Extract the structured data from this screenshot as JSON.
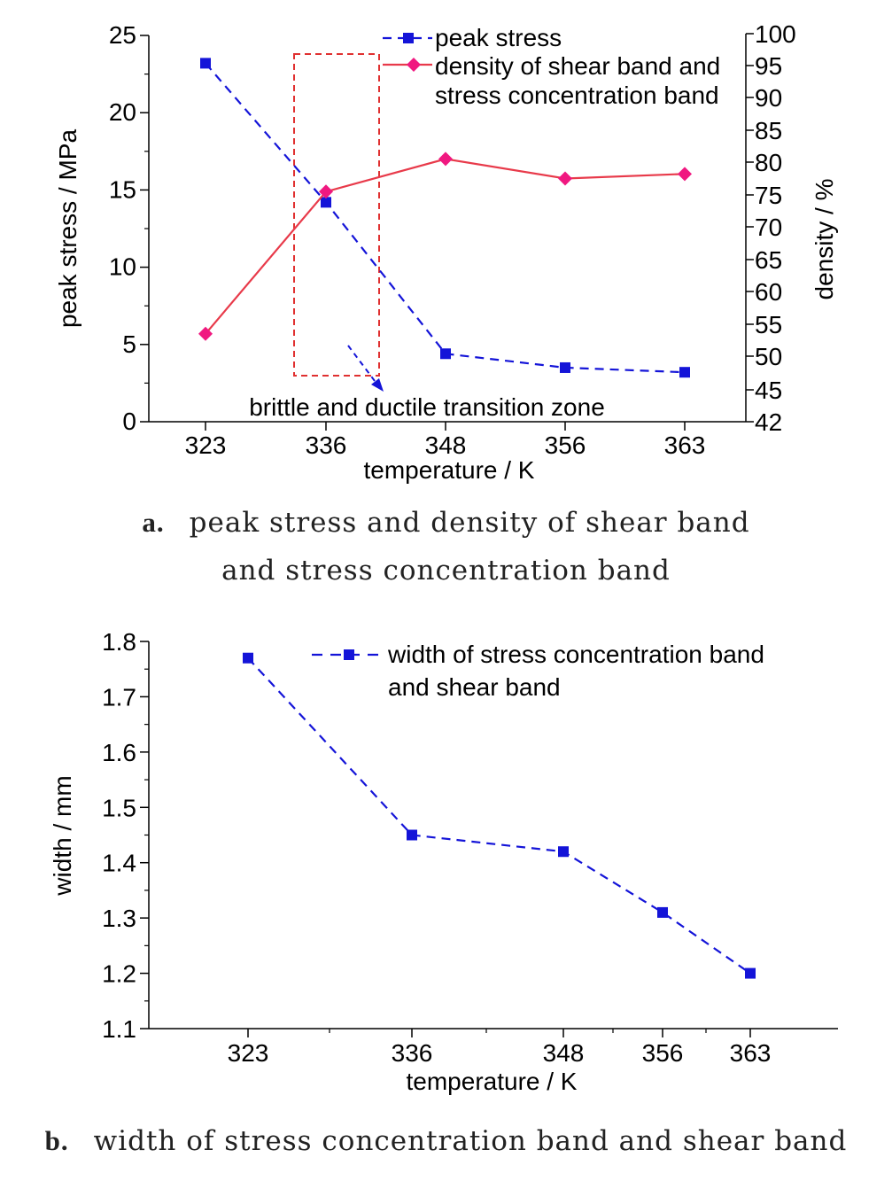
{
  "chart_data": [
    {
      "type": "line",
      "x_categories": [
        "323",
        "336",
        "348",
        "356",
        "363"
      ],
      "xlabel": "temperature / K",
      "ylabel_left": "peak stress / MPa",
      "ylabel_right": "density / %",
      "ylim_left": [
        0,
        25
      ],
      "yticks_left": [
        "0",
        "5",
        "10",
        "15",
        "20",
        "25"
      ],
      "ylim_right": [
        42,
        100
      ],
      "yticks_right": [
        "42",
        "45",
        "50",
        "55",
        "60",
        "65",
        "70",
        "75",
        "80",
        "85",
        "90",
        "95",
        "100"
      ],
      "series": [
        {
          "name": "peak stress",
          "axis": "left",
          "style": "dashed",
          "marker": "square",
          "color": "#1414d8",
          "values": [
            23.2,
            14.2,
            4.4,
            3.5,
            3.2
          ]
        },
        {
          "name_lines": [
            "density of shear band and",
            "stress concentration band"
          ],
          "axis": "right",
          "style": "solid",
          "marker": "diamond",
          "color": "#e83a4a",
          "marker_color": "#f01880",
          "values": [
            53.5,
            75.5,
            80.5,
            77.5,
            78.2
          ]
        }
      ],
      "annotation": "brittle and ductile transition zone",
      "annotation_box_color": "#e03030",
      "caption_label": "a.",
      "caption_lines": [
        "peak stress and density of shear band",
        "and stress concentration band"
      ]
    },
    {
      "type": "line",
      "x": [
        323,
        336,
        348,
        356,
        363
      ],
      "x_tick_labels": [
        "323",
        "336",
        "348",
        "356",
        "363"
      ],
      "xlabel": "temperature / K",
      "ylabel": "width / mm",
      "ylim": [
        1.1,
        1.8
      ],
      "yticks": [
        "1.1",
        "1.2",
        "1.3",
        "1.4",
        "1.5",
        "1.6",
        "1.7",
        "1.8"
      ],
      "series": [
        {
          "name_lines": [
            "width of stress concentration band",
            "and shear band"
          ],
          "style": "dashed",
          "marker": "square",
          "color": "#1414d8",
          "values": [
            1.77,
            1.45,
            1.42,
            1.31,
            1.2
          ]
        }
      ],
      "caption_label": "b.",
      "caption_text": "width of stress concentration band and shear band"
    }
  ]
}
